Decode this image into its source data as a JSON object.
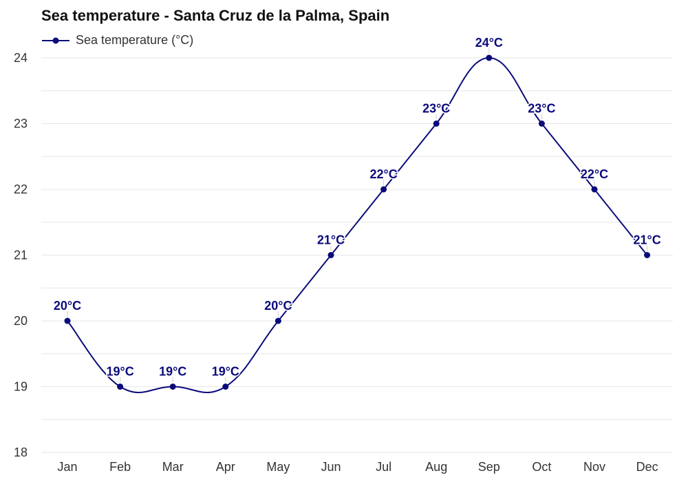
{
  "chart_data": {
    "type": "line",
    "title": "Sea temperature - Santa Cruz de la Palma, Spain",
    "xlabel": "",
    "ylabel": "",
    "categories": [
      "Jan",
      "Feb",
      "Mar",
      "Apr",
      "May",
      "Jun",
      "Jul",
      "Aug",
      "Sep",
      "Oct",
      "Nov",
      "Dec"
    ],
    "series": [
      {
        "name": "Sea temperature (°C)",
        "values": [
          20,
          19,
          19,
          19,
          20,
          21,
          22,
          23,
          24,
          23,
          22,
          21
        ],
        "labels": [
          "20°C",
          "19°C",
          "19°C",
          "19°C",
          "20°C",
          "21°C",
          "22°C",
          "23°C",
          "24°C",
          "23°C",
          "22°C",
          "21°C"
        ],
        "color": "#0a0a7a"
      }
    ],
    "ylim": [
      18,
      24
    ],
    "yticks": [
      "18",
      "19",
      "20",
      "21",
      "22",
      "23",
      "24"
    ],
    "grid": true,
    "legend_position": "top-left"
  }
}
